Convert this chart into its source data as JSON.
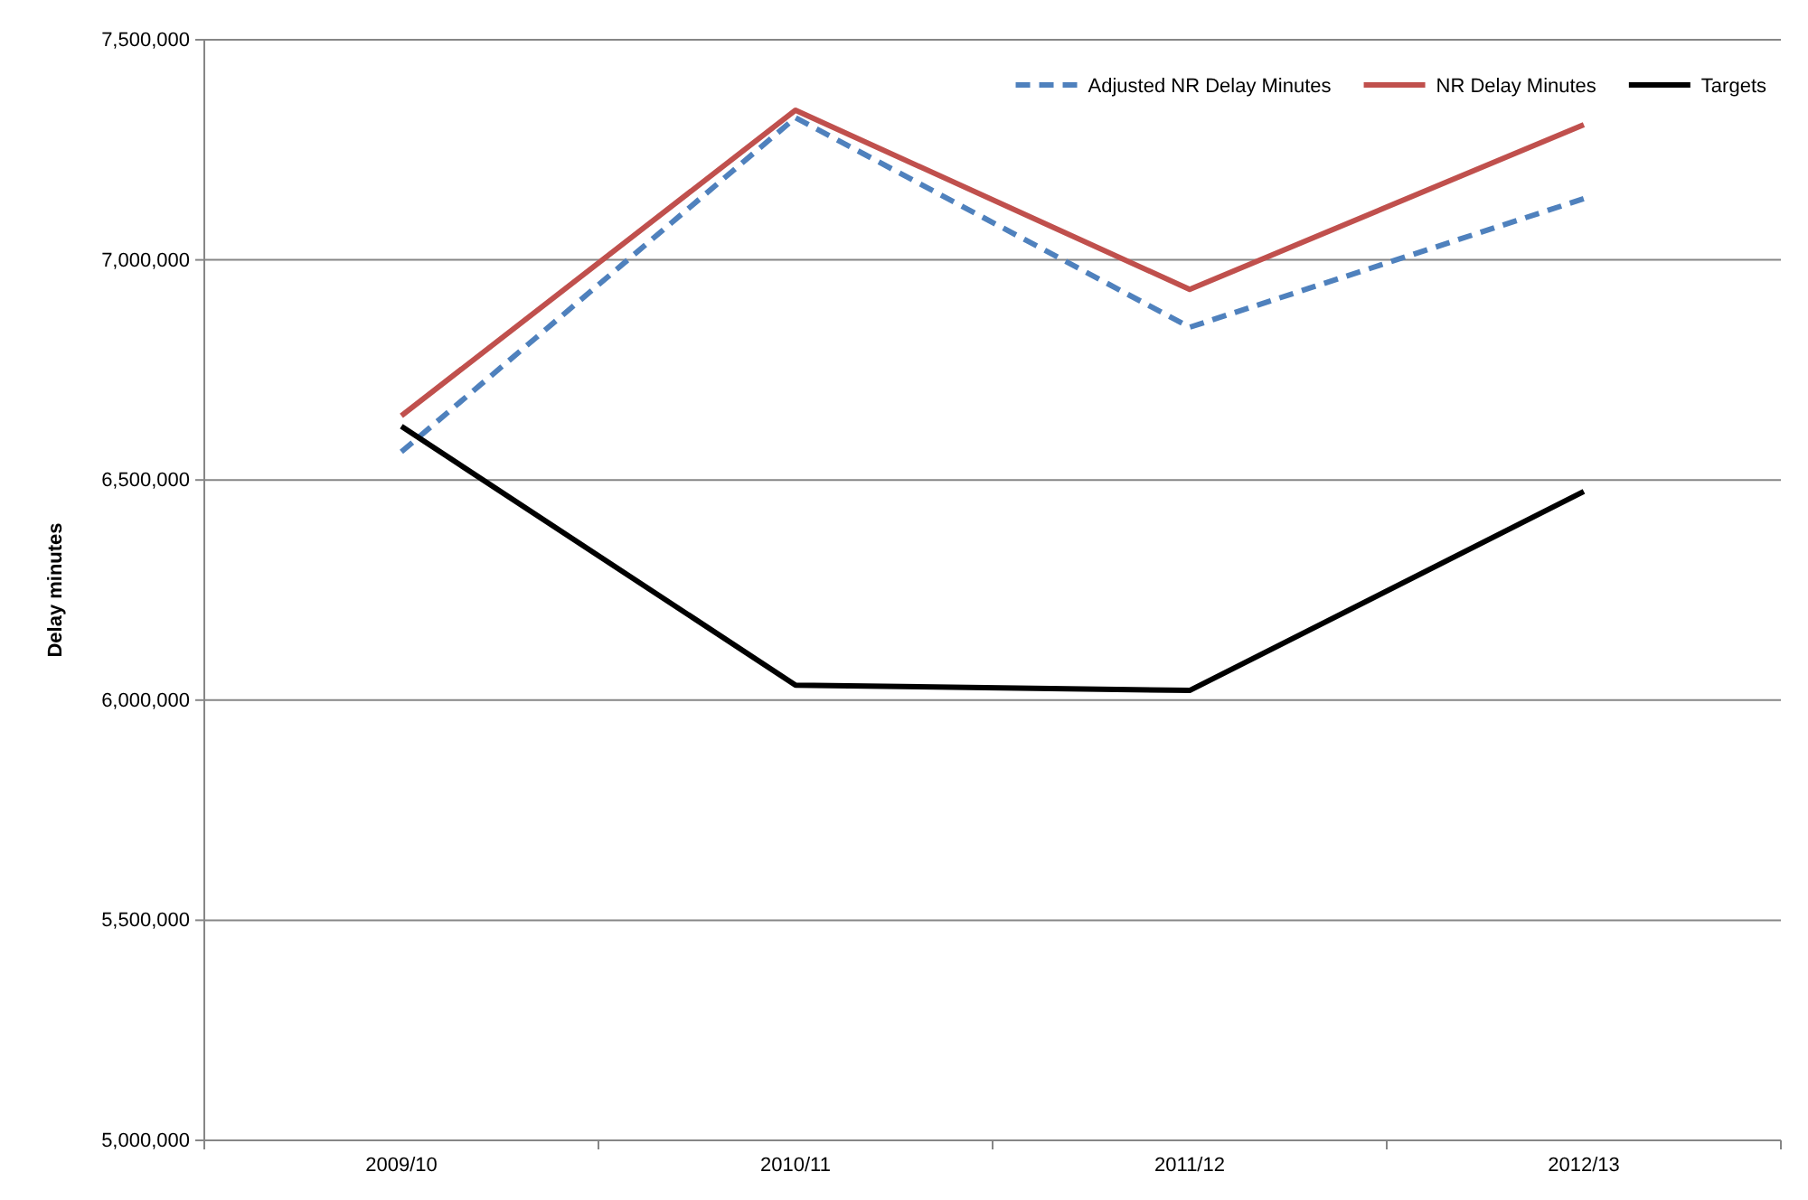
{
  "chart_data": {
    "type": "line",
    "ylabel": "Delay minutes",
    "categories": [
      "2009/10",
      "2010/11",
      "2011/12",
      "2012/13"
    ],
    "series": [
      {
        "name": "Adjusted NR Delay Minutes",
        "color": "#4f81bd",
        "line_style": "dashed",
        "values": [
          6564000,
          7323000,
          6847000,
          7139000
        ]
      },
      {
        "name": "NR Delay Minutes",
        "color": "#c0504d",
        "line_style": "solid",
        "values": [
          6646000,
          7340000,
          6933000,
          7307000
        ]
      },
      {
        "name": "Targets",
        "color": "#000000",
        "line_style": "solid",
        "values": [
          6622000,
          6034000,
          6022000,
          6474000
        ]
      }
    ],
    "ylim": [
      5000000,
      7500000
    ],
    "yticks": [
      {
        "value": 5000000,
        "label": "5,000,000"
      },
      {
        "value": 5500000,
        "label": "5,500,000"
      },
      {
        "value": 6000000,
        "label": "6,000,000"
      },
      {
        "value": 6500000,
        "label": "6,500,000"
      },
      {
        "value": 7000000,
        "label": "7,000,000"
      },
      {
        "value": 7500000,
        "label": "7,500,000"
      }
    ],
    "grid": "y",
    "legend": "top right",
    "marker": "none"
  }
}
